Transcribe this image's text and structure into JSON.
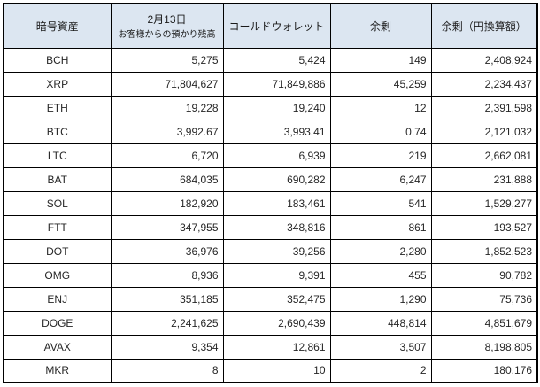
{
  "table": {
    "headers": {
      "asset": "暗号資産",
      "customer_balance_date": "2月13日",
      "customer_balance_label": "お客様からの預かり残高",
      "cold_wallet": "コールドウォレット",
      "surplus": "余剰",
      "surplus_jpy": "余剰（円換算額）"
    },
    "rows": [
      {
        "asset": "BCH",
        "customer_balance": "5,275",
        "cold_wallet": "5,424",
        "surplus": "149",
        "surplus_jpy": "2,408,924"
      },
      {
        "asset": "XRP",
        "customer_balance": "71,804,627",
        "cold_wallet": "71,849,886",
        "surplus": "45,259",
        "surplus_jpy": "2,234,437"
      },
      {
        "asset": "ETH",
        "customer_balance": "19,228",
        "cold_wallet": "19,240",
        "surplus": "12",
        "surplus_jpy": "2,391,598"
      },
      {
        "asset": "BTC",
        "customer_balance": "3,992.67",
        "cold_wallet": "3,993.41",
        "surplus": "0.74",
        "surplus_jpy": "2,121,032"
      },
      {
        "asset": "LTC",
        "customer_balance": "6,720",
        "cold_wallet": "6,939",
        "surplus": "219",
        "surplus_jpy": "2,662,081"
      },
      {
        "asset": "BAT",
        "customer_balance": "684,035",
        "cold_wallet": "690,282",
        "surplus": "6,247",
        "surplus_jpy": "231,888"
      },
      {
        "asset": "SOL",
        "customer_balance": "182,920",
        "cold_wallet": "183,461",
        "surplus": "541",
        "surplus_jpy": "1,529,277"
      },
      {
        "asset": "FTT",
        "customer_balance": "347,955",
        "cold_wallet": "348,816",
        "surplus": "861",
        "surplus_jpy": "193,527"
      },
      {
        "asset": "DOT",
        "customer_balance": "36,976",
        "cold_wallet": "39,256",
        "surplus": "2,280",
        "surplus_jpy": "1,852,523"
      },
      {
        "asset": "OMG",
        "customer_balance": "8,936",
        "cold_wallet": "9,391",
        "surplus": "455",
        "surplus_jpy": "90,782"
      },
      {
        "asset": "ENJ",
        "customer_balance": "351,185",
        "cold_wallet": "352,475",
        "surplus": "1,290",
        "surplus_jpy": "75,736"
      },
      {
        "asset": "DOGE",
        "customer_balance": "2,241,625",
        "cold_wallet": "2,690,439",
        "surplus": "448,814",
        "surplus_jpy": "4,851,679"
      },
      {
        "asset": "AVAX",
        "customer_balance": "9,354",
        "cold_wallet": "12,861",
        "surplus": "3,507",
        "surplus_jpy": "8,198,805"
      },
      {
        "asset": "MKR",
        "customer_balance": "8",
        "cold_wallet": "10",
        "surplus": "2",
        "surplus_jpy": "180,176"
      }
    ]
  },
  "colors": {
    "header_bg": "#dce6f1",
    "border": "#000000",
    "text": "#262626"
  }
}
